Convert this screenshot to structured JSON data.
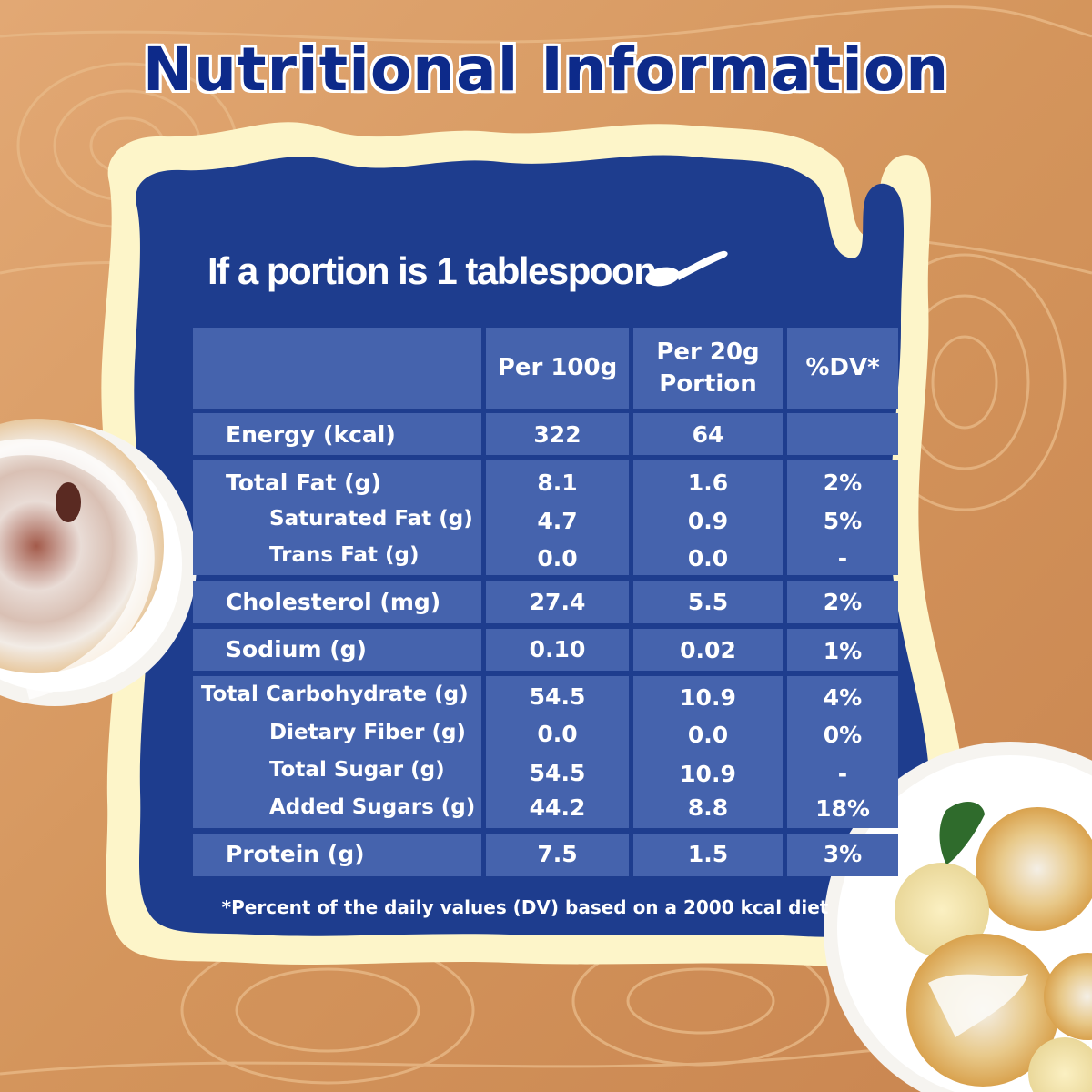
{
  "title": "Nutritional Information",
  "subtitle": "If a portion is 1 tablespoon",
  "icons": {
    "spoon": "spoon-icon"
  },
  "colors": {
    "navy": "#0d2a8a",
    "panel": "#1e3d8e",
    "cell": "#4563ad",
    "cream": "#fdf5c9",
    "wood": "#d99a62"
  },
  "table": {
    "headers": [
      "",
      "Per 100g",
      "Per 20g Portion",
      "%DV*"
    ],
    "groups": [
      {
        "rows": [
          {
            "label": "Energy (kcal)",
            "per100": "322",
            "per20": "64",
            "dv": ""
          }
        ]
      },
      {
        "rows": [
          {
            "label": "Total Fat (g)",
            "per100": "8.1",
            "per20": "1.6",
            "dv": "2%"
          },
          {
            "label": "Saturated Fat (g)",
            "per100": "4.7",
            "per20": "0.9",
            "dv": "5%"
          },
          {
            "label": "Trans Fat (g)",
            "per100": "0.0",
            "per20": "0.0",
            "dv": "-"
          }
        ]
      },
      {
        "rows": [
          {
            "label": "Cholesterol (mg)",
            "per100": "27.4",
            "per20": "5.5",
            "dv": "2%"
          }
        ]
      },
      {
        "rows": [
          {
            "label": "Sodium (g)",
            "per100": "0.10",
            "per20": "0.02",
            "dv": "1%"
          }
        ]
      },
      {
        "rows": [
          {
            "label": "Total Carbohydrate (g)",
            "per100": "54.5",
            "per20": "10.9",
            "dv": "4%"
          },
          {
            "label": "Dietary Fiber (g)",
            "per100": "0.0",
            "per20": "0.0",
            "dv": "0%"
          },
          {
            "label": "Total Sugar (g)",
            "per100": "54.5",
            "per20": "10.9",
            "dv": "-"
          },
          {
            "label": "Added Sugars (g)",
            "per100": "44.2",
            "per20": "8.8",
            "dv": "18%"
          }
        ]
      },
      {
        "rows": [
          {
            "label": "Protein (g)",
            "per100": "7.5",
            "per20": "1.5",
            "dv": "3%"
          }
        ]
      }
    ]
  },
  "footnote": "*Percent of the daily values (DV) based on a 2000 kcal diet"
}
